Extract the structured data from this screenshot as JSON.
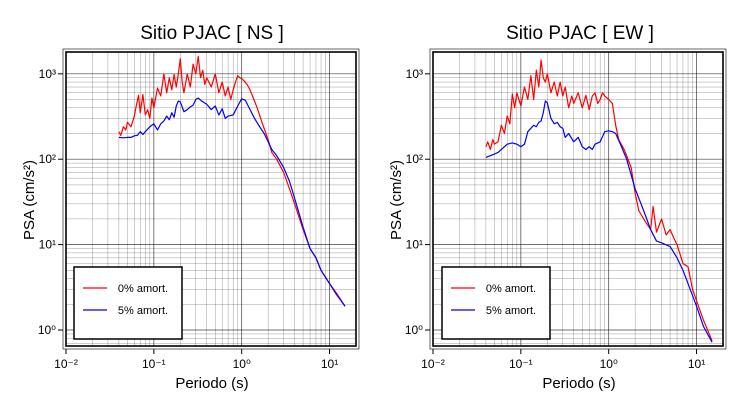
{
  "chart_data": [
    {
      "type": "line",
      "title": "Sitio PJAC [ NS ]",
      "xlabel": "Periodo (s)",
      "ylabel": "PSA (cm/s²)",
      "x_scale": "log",
      "y_scale": "log",
      "xlim": [
        0.01,
        20
      ],
      "ylim": [
        0.65,
        1800
      ],
      "x_tick_labels": [
        "10⁻²",
        "10⁻¹",
        "10⁰",
        "10¹"
      ],
      "y_tick_labels": [
        "10⁰",
        "10¹",
        "10²",
        "10³"
      ],
      "grid": true,
      "legend_position": "bottom-left",
      "series": [
        {
          "name": "0% amort.",
          "color": "#ff0000",
          "x": [
            0.04,
            0.042,
            0.045,
            0.048,
            0.05,
            0.055,
            0.06,
            0.063,
            0.067,
            0.07,
            0.075,
            0.08,
            0.085,
            0.09,
            0.095,
            0.1,
            0.11,
            0.12,
            0.13,
            0.14,
            0.15,
            0.16,
            0.17,
            0.18,
            0.19,
            0.2,
            0.21,
            0.22,
            0.24,
            0.26,
            0.28,
            0.3,
            0.32,
            0.34,
            0.36,
            0.38,
            0.4,
            0.45,
            0.5,
            0.55,
            0.6,
            0.65,
            0.7,
            0.75,
            0.8,
            0.85,
            0.9,
            0.95,
            1.0,
            1.1,
            1.2,
            1.3,
            1.5,
            1.7,
            2.0,
            2.2,
            2.5,
            3.0,
            3.5,
            4.0,
            5.0,
            6.0,
            7.0,
            8.0,
            10.0,
            12.0,
            15.0
          ],
          "y": [
            210,
            190,
            240,
            220,
            270,
            240,
            320,
            420,
            560,
            350,
            570,
            330,
            380,
            300,
            520,
            400,
            680,
            550,
            1000,
            600,
            900,
            650,
            980,
            700,
            1000,
            1500,
            800,
            600,
            1000,
            700,
            1300,
            1000,
            1600,
            900,
            1100,
            750,
            900,
            700,
            1000,
            600,
            800,
            550,
            700,
            500,
            650,
            800,
            950,
            900,
            880,
            800,
            700,
            580,
            400,
            270,
            170,
            120,
            100,
            70,
            45,
            30,
            15,
            9,
            7,
            5,
            3.5,
            2.7,
            1.9
          ]
        },
        {
          "name": "5% amort.",
          "color": "#0000ff",
          "x": [
            0.04,
            0.045,
            0.05,
            0.055,
            0.06,
            0.065,
            0.07,
            0.075,
            0.08,
            0.09,
            0.1,
            0.11,
            0.12,
            0.13,
            0.14,
            0.15,
            0.16,
            0.17,
            0.18,
            0.19,
            0.2,
            0.22,
            0.24,
            0.26,
            0.28,
            0.3,
            0.32,
            0.35,
            0.4,
            0.45,
            0.5,
            0.55,
            0.6,
            0.65,
            0.7,
            0.8,
            0.9,
            1.0,
            1.1,
            1.2,
            1.4,
            1.6,
            1.8,
            2.0,
            2.2,
            2.5,
            3.0,
            3.5,
            4.0,
            5.0,
            6.0,
            7.0,
            8.0,
            10.0,
            12.0,
            15.0
          ],
          "y": [
            180,
            178,
            180,
            180,
            188,
            190,
            210,
            195,
            210,
            240,
            260,
            220,
            260,
            280,
            320,
            290,
            350,
            310,
            420,
            480,
            470,
            360,
            380,
            410,
            430,
            500,
            520,
            480,
            440,
            380,
            420,
            330,
            390,
            300,
            320,
            330,
            420,
            510,
            490,
            410,
            300,
            240,
            200,
            160,
            130,
            110,
            80,
            55,
            35,
            16,
            9,
            7,
            5,
            3.5,
            2.6,
            1.9
          ]
        }
      ]
    },
    {
      "type": "line",
      "title": "Sitio PJAC [ EW ]",
      "xlabel": "Periodo (s)",
      "ylabel": "PSA (cm/s²)",
      "x_scale": "log",
      "y_scale": "log",
      "xlim": [
        0.01,
        20
      ],
      "ylim": [
        0.65,
        1800
      ],
      "x_tick_labels": [
        "10⁻²",
        "10⁻¹",
        "10⁰",
        "10¹"
      ],
      "y_tick_labels": [
        "10⁰",
        "10¹",
        "10²",
        "10³"
      ],
      "grid": true,
      "legend_position": "bottom-left",
      "series": [
        {
          "name": "0% amort.",
          "color": "#ff0000",
          "x": [
            0.04,
            0.042,
            0.045,
            0.048,
            0.05,
            0.055,
            0.06,
            0.065,
            0.07,
            0.075,
            0.08,
            0.085,
            0.09,
            0.1,
            0.11,
            0.12,
            0.13,
            0.14,
            0.15,
            0.16,
            0.17,
            0.18,
            0.19,
            0.2,
            0.22,
            0.24,
            0.26,
            0.28,
            0.3,
            0.32,
            0.35,
            0.38,
            0.4,
            0.45,
            0.5,
            0.55,
            0.6,
            0.65,
            0.7,
            0.75,
            0.8,
            0.85,
            0.9,
            1.0,
            1.1,
            1.2,
            1.3,
            1.5,
            1.8,
            2.0,
            2.2,
            2.5,
            3.0,
            3.2,
            3.5,
            4.0,
            4.5,
            5.0,
            5.5,
            6.0,
            7.0,
            8.0,
            9.0,
            10.0,
            12.0,
            15.0
          ],
          "y": [
            140,
            160,
            130,
            170,
            150,
            160,
            250,
            200,
            320,
            260,
            580,
            400,
            600,
            420,
            700,
            500,
            950,
            500,
            1100,
            700,
            1450,
            900,
            800,
            1000,
            600,
            800,
            550,
            800,
            550,
            700,
            400,
            550,
            450,
            600,
            400,
            560,
            380,
            550,
            600,
            450,
            500,
            600,
            550,
            500,
            450,
            250,
            170,
            130,
            80,
            40,
            25,
            20,
            15,
            28,
            14,
            20,
            13,
            15,
            12,
            10,
            6,
            5.5,
            3,
            2.2,
            1.3,
            0.75
          ]
        },
        {
          "name": "5% amort.",
          "color": "#0000ff",
          "x": [
            0.04,
            0.045,
            0.05,
            0.055,
            0.06,
            0.07,
            0.08,
            0.09,
            0.1,
            0.11,
            0.12,
            0.13,
            0.14,
            0.15,
            0.16,
            0.17,
            0.18,
            0.19,
            0.2,
            0.22,
            0.24,
            0.26,
            0.28,
            0.3,
            0.32,
            0.35,
            0.4,
            0.45,
            0.5,
            0.55,
            0.6,
            0.65,
            0.7,
            0.8,
            0.9,
            1.0,
            1.1,
            1.2,
            1.4,
            1.6,
            2.0,
            2.5,
            3.0,
            3.5,
            4.0,
            5.0,
            6.0,
            7.0,
            8.0,
            10.0,
            12.0,
            15.0
          ],
          "y": [
            105,
            110,
            115,
            120,
            130,
            150,
            155,
            150,
            140,
            150,
            210,
            230,
            250,
            240,
            270,
            280,
            350,
            480,
            460,
            300,
            260,
            270,
            240,
            230,
            180,
            200,
            160,
            180,
            140,
            130,
            140,
            130,
            150,
            160,
            210,
            215,
            210,
            200,
            140,
            100,
            45,
            25,
            15,
            11,
            10.5,
            9.5,
            7,
            5,
            3.5,
            1.9,
            1.1,
            0.72
          ]
        }
      ]
    }
  ]
}
